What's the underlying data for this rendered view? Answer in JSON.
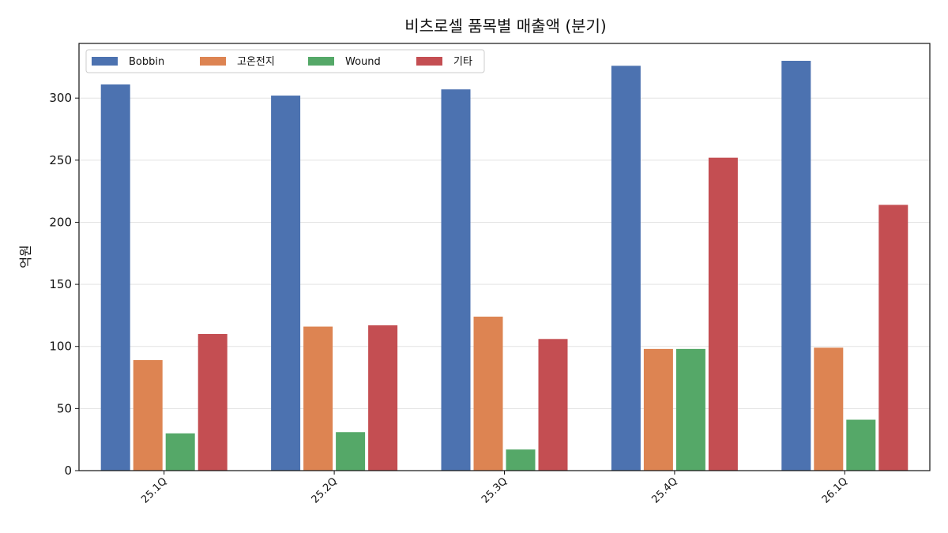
{
  "chart_data": {
    "type": "bar",
    "title": "비츠로셀 품목별 매출액 (분기)",
    "xlabel": "",
    "ylabel": "억원",
    "categories": [
      "25.1Q",
      "25.2Q",
      "25.3Q",
      "25.4Q",
      "26.1Q"
    ],
    "series": [
      {
        "name": "Bobbin",
        "color": "#4c72b0",
        "values": [
          311,
          302,
          307,
          326,
          330
        ]
      },
      {
        "name": "고온전지",
        "color": "#dd8452",
        "values": [
          89,
          116,
          124,
          98,
          99
        ]
      },
      {
        "name": "Wound",
        "color": "#55a868",
        "values": [
          30,
          31,
          17,
          98,
          41
        ]
      },
      {
        "name": "기타",
        "color": "#c44e52",
        "values": [
          110,
          117,
          106,
          252,
          214
        ]
      }
    ],
    "ylim": [
      0,
      344
    ],
    "yticks": [
      0,
      50,
      100,
      150,
      200,
      250,
      300
    ],
    "grid": "y-major",
    "legend_position": "top-left"
  }
}
